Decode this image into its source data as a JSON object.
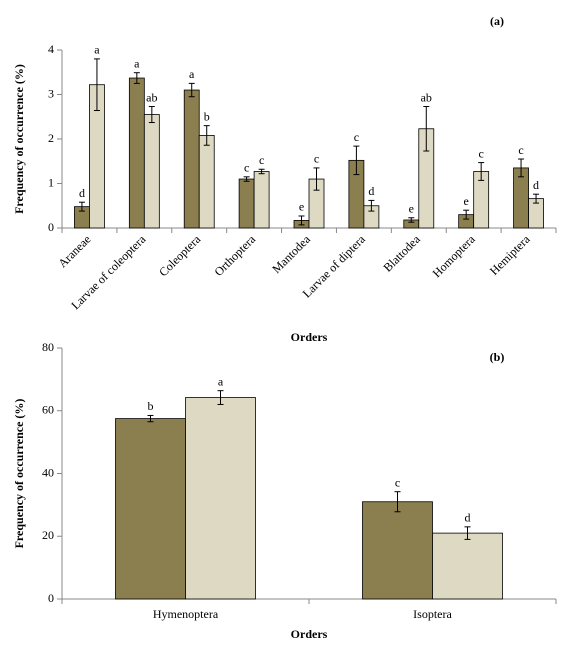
{
  "chart_data": [
    {
      "type": "bar",
      "panel_label": "(a)",
      "x_label": "Orders",
      "y_label": "Frequency of occurrence (%)",
      "categories": [
        "Araneae",
        "Larvae of coleoptera",
        "Coleoptera",
        "Orthoptera",
        "Mantodea",
        "Larvae of diptera",
        "Blattodea",
        "Homoptera",
        "Hemiptera"
      ],
      "series": [
        {
          "color": "#8c7f4f",
          "values": [
            0.48,
            3.37,
            3.1,
            1.1,
            0.17,
            1.52,
            0.18,
            0.3,
            1.35
          ],
          "errors": [
            0.1,
            0.12,
            0.15,
            0.05,
            0.1,
            0.32,
            0.05,
            0.1,
            0.2
          ],
          "letters": [
            "d",
            "a",
            "a",
            "c",
            "e",
            "c",
            "e",
            "e",
            "c"
          ]
        },
        {
          "color": "#ddd9c3",
          "values": [
            3.22,
            2.55,
            2.08,
            1.27,
            1.1,
            0.5,
            2.23,
            1.27,
            0.66
          ],
          "errors": [
            0.58,
            0.18,
            0.22,
            0.05,
            0.25,
            0.12,
            0.5,
            0.2,
            0.1
          ],
          "letters": [
            "a",
            "ab",
            "b",
            "c",
            "c",
            "d",
            "ab",
            "c",
            "d"
          ]
        }
      ],
      "ylim": [
        0,
        4
      ],
      "yticks": [
        0,
        1,
        2,
        3,
        4
      ],
      "grid": false
    },
    {
      "type": "bar",
      "panel_label": "(b)",
      "x_label": "Orders",
      "y_label": "Frequency of occurrence (%)",
      "categories": [
        "Hymenoptera",
        "Isoptera"
      ],
      "series": [
        {
          "color": "#8c7f4f",
          "values": [
            57.5,
            31
          ],
          "errors": [
            1,
            3.2
          ],
          "letters": [
            "b",
            "c"
          ]
        },
        {
          "color": "#ddd9c3",
          "values": [
            64.2,
            21
          ],
          "errors": [
            2.2,
            2
          ],
          "letters": [
            "a",
            "d"
          ]
        }
      ],
      "ylim": [
        0,
        80
      ],
      "yticks": [
        0,
        20,
        40,
        60,
        80
      ],
      "grid": false
    }
  ]
}
